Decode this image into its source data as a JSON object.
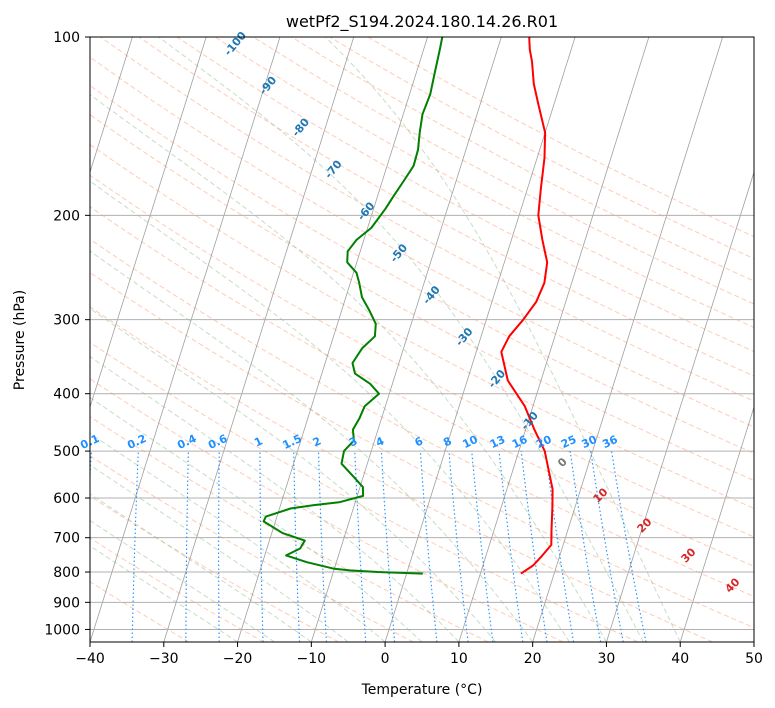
{
  "chart_data": {
    "type": "line",
    "subtype": "skew-t log-p diagram",
    "title": "wetPf2_S194.2024.180.14.26.R01",
    "xlabel": "Temperature (°C)",
    "ylabel": "Pressure (hPa)",
    "xlim": [
      -40,
      50
    ],
    "ylim": [
      1050,
      100
    ],
    "y_scale": "log",
    "grid": true,
    "x_ticks": [
      "−40",
      "−30",
      "−20",
      "−10",
      "0",
      "10",
      "20",
      "30",
      "40",
      "50"
    ],
    "y_ticks": [
      "100",
      "200",
      "300",
      "400",
      "500",
      "600",
      "700",
      "800",
      "900",
      "1000"
    ],
    "colors": {
      "temperature": "#ff0000",
      "dewpoint": "#008000",
      "isotherm_label": "#1f77b4",
      "dry_adiabat": "#ffa07a",
      "moist_adiabat": "#8fbc8f",
      "mixing_ratio": "#1e90ff",
      "lcl_label": "#d62728",
      "isotherm": "#888888"
    },
    "series": [
      {
        "role": "temperature",
        "points": [
          [
            15.5,
            805
          ],
          [
            16.8,
            780
          ],
          [
            17.5,
            755
          ],
          [
            18.4,
            720
          ],
          [
            17.8,
            680
          ],
          [
            16.9,
            620
          ],
          [
            16.2,
            580
          ],
          [
            14.9,
            540
          ],
          [
            13.5,
            500
          ],
          [
            11.2,
            460
          ],
          [
            8.9,
            420
          ],
          [
            5.5,
            380
          ],
          [
            3.4,
            340
          ],
          [
            3.8,
            320
          ],
          [
            5.0,
            300
          ],
          [
            6.0,
            280
          ],
          [
            6.3,
            260
          ],
          [
            5.8,
            240
          ],
          [
            4.2,
            220
          ],
          [
            2.6,
            200
          ],
          [
            1.8,
            180
          ],
          [
            1.0,
            160
          ],
          [
            0.0,
            145
          ],
          [
            -2.1,
            130
          ],
          [
            -3.6,
            120
          ],
          [
            -4.8,
            110
          ],
          [
            -5.6,
            105
          ],
          [
            -6.1,
            101
          ],
          [
            -6.2,
            100
          ]
        ]
      },
      {
        "role": "dewpoint",
        "points": [
          [
            2.2,
            805
          ],
          [
            -4.0,
            800
          ],
          [
            -7.8,
            795
          ],
          [
            -10.0,
            790
          ],
          [
            -14.0,
            770
          ],
          [
            -17.1,
            750
          ],
          [
            -15.5,
            730
          ],
          [
            -15.2,
            708
          ],
          [
            -18.5,
            688
          ],
          [
            -21.6,
            657
          ],
          [
            -21.5,
            645
          ],
          [
            -18.5,
            625
          ],
          [
            -15.6,
            617
          ],
          [
            -12.2,
            610
          ],
          [
            -9.2,
            595
          ],
          [
            -9.6,
            575
          ],
          [
            -11.5,
            550
          ],
          [
            -13.5,
            525
          ],
          [
            -13.7,
            500
          ],
          [
            -12.8,
            480
          ],
          [
            -13.4,
            460
          ],
          [
            -13.0,
            440
          ],
          [
            -12.8,
            420
          ],
          [
            -11.4,
            400
          ],
          [
            -13.0,
            385
          ],
          [
            -15.5,
            370
          ],
          [
            -16.3,
            355
          ],
          [
            -15.6,
            335
          ],
          [
            -14.4,
            320
          ],
          [
            -14.8,
            305
          ],
          [
            -16.2,
            290
          ],
          [
            -17.8,
            275
          ],
          [
            -18.8,
            260
          ],
          [
            -19.6,
            250
          ],
          [
            -21.3,
            240
          ],
          [
            -21.7,
            230
          ],
          [
            -21.0,
            220
          ],
          [
            -19.5,
            210
          ],
          [
            -18.4,
            195
          ],
          [
            -17.8,
            185
          ],
          [
            -17.1,
            175
          ],
          [
            -16.4,
            165
          ],
          [
            -16.5,
            155
          ],
          [
            -17.0,
            145
          ],
          [
            -17.4,
            135
          ],
          [
            -17.2,
            125
          ],
          [
            -17.5,
            115
          ],
          [
            -17.8,
            105
          ],
          [
            -18.0,
            100
          ]
        ]
      }
    ],
    "isotherm_labels": [
      "-100",
      "-90",
      "-80",
      "-70",
      "-60",
      "-50",
      "-40",
      "-30",
      "-20",
      "-10",
      "0"
    ],
    "isotherm_label_values": [
      -100,
      -90,
      -80,
      -70,
      -60,
      -50,
      -40,
      -30,
      -20,
      -10,
      0
    ],
    "mixing_ratio_labels": [
      "0.1",
      "0.2",
      "0.4",
      "0.6",
      "1",
      "1.5",
      "2",
      "3",
      "4",
      "6",
      "8",
      "10",
      "13",
      "16",
      "20",
      "25",
      "30",
      "36"
    ],
    "mixing_ratio_values": [
      0.1,
      0.2,
      0.4,
      0.6,
      1,
      1.5,
      2,
      3,
      4,
      6,
      8,
      10,
      13,
      16,
      20,
      25,
      30,
      36
    ],
    "wet_bulb_labels": [
      "10",
      "20",
      "30",
      "40"
    ],
    "wet_bulb_values": [
      10,
      20,
      30,
      40
    ]
  }
}
